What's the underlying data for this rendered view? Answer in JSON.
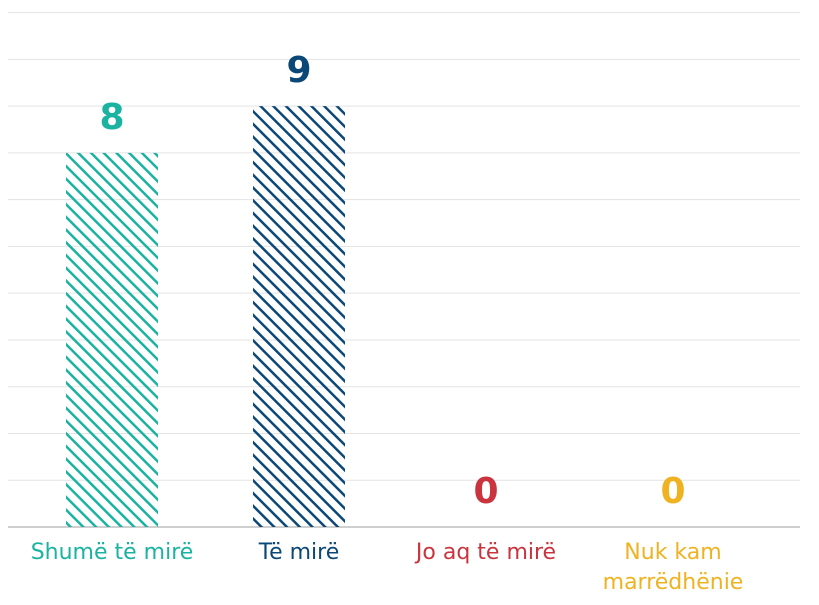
{
  "chart_data": {
    "type": "bar",
    "categories": [
      "Shumë të mirë",
      "Të mirë",
      "Jo aq të mirë",
      "Nuk kam marrëdhënie"
    ],
    "values": [
      8,
      9,
      0,
      0
    ],
    "colors": [
      "#1ab3a2",
      "#0b4877",
      "#c9343f",
      "#efb322"
    ],
    "ylim": [
      0,
      11
    ],
    "yticks": [
      0,
      1,
      2,
      3,
      4,
      5,
      6,
      7,
      8,
      9,
      10,
      11
    ],
    "grid": true,
    "hatch": true
  }
}
